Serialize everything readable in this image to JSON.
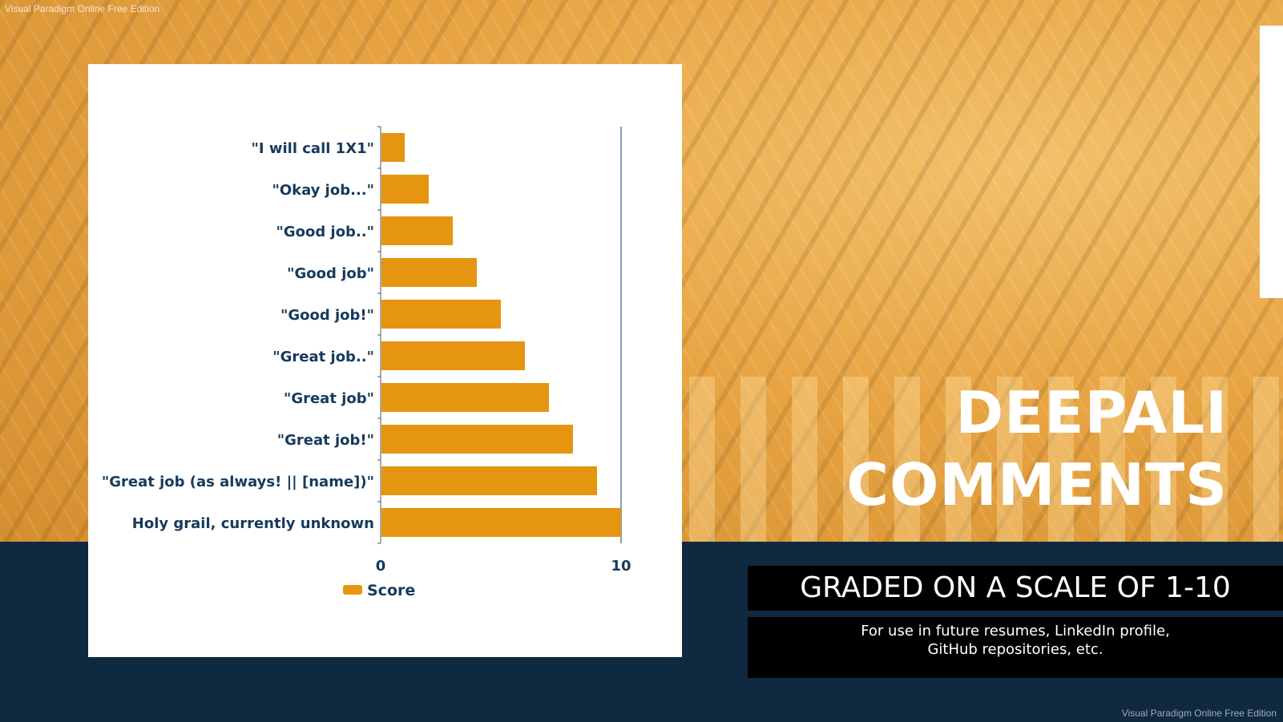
{
  "watermark": "Visual Paradigm Online Free Edition",
  "title": {
    "line1": "DEEPALI",
    "line2": "COMMENTS"
  },
  "subtitle": "GRADED ON A SCALE OF 1-10",
  "description": {
    "line1": "For use in future resumes, LinkedIn profile,",
    "line2": "GitHub repositories, etc."
  },
  "colors": {
    "bar": "#e59510",
    "label": "#163a5c",
    "background_band": "#0f2a40"
  },
  "chart_data": {
    "type": "bar",
    "orientation": "horizontal",
    "categories": [
      "\"I will call 1X1\"",
      "\"Okay job...\"",
      "\"Good job..\"",
      "\"Good job\"",
      "\"Good job!\"",
      "\"Great job..\"",
      "\"Great job\"",
      "\"Great job!\"",
      "\"Great job (as always! || [name])\"",
      "Holy grail, currently unknown"
    ],
    "series": [
      {
        "name": "Score",
        "values": [
          1,
          2,
          3,
          4,
          5,
          6,
          7,
          8,
          9,
          10
        ]
      }
    ],
    "xlim": [
      0,
      10
    ],
    "xticks": [
      "0",
      "10"
    ],
    "legend": "bottom",
    "grid": false
  }
}
